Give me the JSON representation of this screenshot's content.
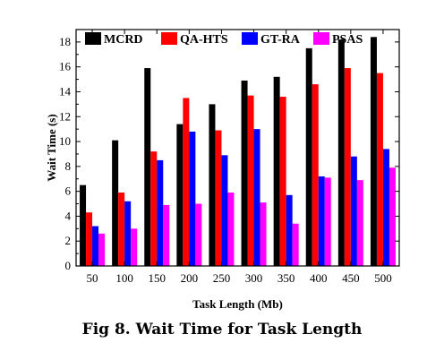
{
  "chart_data": {
    "type": "bar",
    "xlabel": "Task Length (Mb)",
    "ylabel": "Wait Time (s)",
    "ylim": [
      0,
      19
    ],
    "yticks": [
      0,
      2,
      4,
      6,
      8,
      10,
      12,
      14,
      16,
      18
    ],
    "categories": [
      "50",
      "100",
      "150",
      "200",
      "250",
      "300",
      "350",
      "400",
      "450",
      "500"
    ],
    "legend_position": "top",
    "grid": false,
    "series": [
      {
        "name": "MCRD",
        "color": "#000000",
        "values": [
          6.5,
          10.1,
          15.9,
          11.4,
          13.0,
          14.9,
          15.2,
          17.5,
          18.2,
          18.4
        ]
      },
      {
        "name": "QA-HTS",
        "color": "#ff0000",
        "values": [
          4.3,
          5.9,
          9.2,
          13.5,
          10.9,
          13.7,
          13.6,
          14.6,
          15.9,
          15.5
        ]
      },
      {
        "name": "GT-RA",
        "color": "#0000ff",
        "values": [
          3.2,
          5.2,
          8.5,
          10.8,
          8.9,
          11.0,
          5.7,
          7.2,
          8.8,
          9.4
        ]
      },
      {
        "name": "PSAS",
        "color": "#ff00ff",
        "values": [
          2.6,
          3.0,
          4.9,
          5.0,
          5.9,
          5.1,
          3.4,
          7.1,
          6.9,
          7.9
        ]
      }
    ]
  },
  "caption": "Fig 8. Wait Time for Task Length"
}
